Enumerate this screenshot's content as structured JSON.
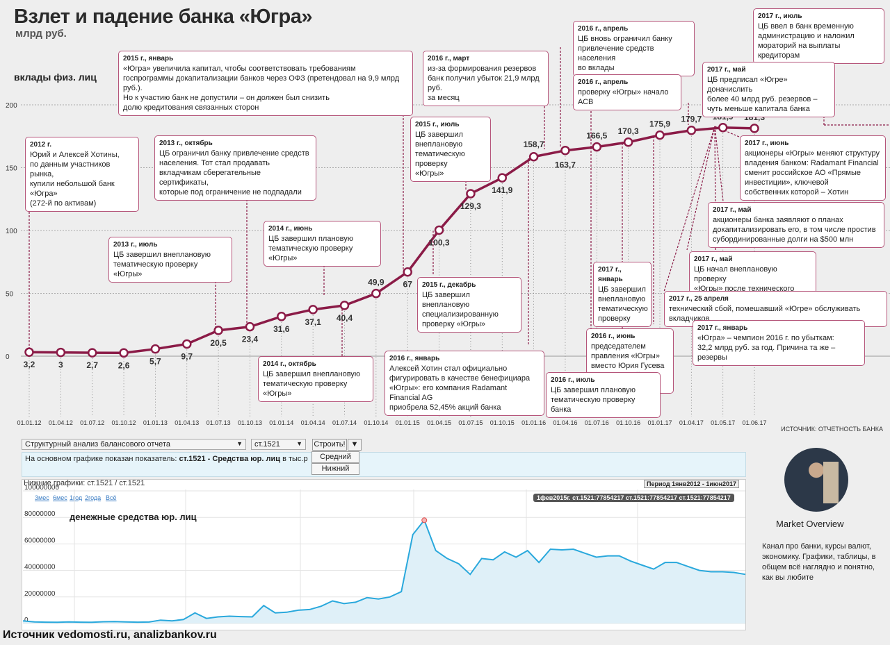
{
  "title": "Взлет и падение банка «Югра»",
  "subtitle": "млрд руб.",
  "series_label": "вклады физ. лиц",
  "source_top": "ИСТОЧНИК: ОТЧЕТНОСТЬ БАНКА",
  "chart_data": {
    "type": "line",
    "ylabel": "вклады физ. лиц",
    "ylim": [
      0,
      200
    ],
    "yticks": [
      "0",
      "50",
      "100",
      "150",
      "200"
    ],
    "x_tick_labels": [
      "01.01.12",
      "01.04.12",
      "01.07.12",
      "01.10.12",
      "01.01.13",
      "01.04.13",
      "01.07.13",
      "01.10.13",
      "01.01.14",
      "01.04.14",
      "01.07.14",
      "01.10.14",
      "01.01.15",
      "01.04.15",
      "01.07.15",
      "01.10.15",
      "01.01.16",
      "01.04.16",
      "01.07.16",
      "01.10.16",
      "01.01.17",
      "01.04.17",
      "01.05.17",
      "01.06.17"
    ],
    "series": [
      {
        "color": "#8b1b47",
        "points": [
          {
            "x": "01.01.12",
            "y": 3.2,
            "label": "3,2"
          },
          {
            "x": "01.04.12",
            "y": 3,
            "label": "3"
          },
          {
            "x": "01.07.12",
            "y": 2.7,
            "label": "2,7"
          },
          {
            "x": "01.10.12",
            "y": 2.6,
            "label": "2,6"
          },
          {
            "x": "01.01.13",
            "y": 5.7,
            "label": "5,7"
          },
          {
            "x": "01.04.13",
            "y": 9.7,
            "label": "9,7"
          },
          {
            "x": "01.07.13",
            "y": 20.5,
            "label": "20,5"
          },
          {
            "x": "01.10.13",
            "y": 23.4,
            "label": "23,4"
          },
          {
            "x": "01.01.14",
            "y": 31.6,
            "label": "31,6"
          },
          {
            "x": "01.04.14",
            "y": 37.1,
            "label": "37,1"
          },
          {
            "x": "01.07.14",
            "y": 40.4,
            "label": "40,4"
          },
          {
            "x": "01.10.14",
            "y": 49.9,
            "label": "49,9"
          },
          {
            "x": "01.01.15",
            "y": 67,
            "label": "67"
          },
          {
            "x": "01.04.15",
            "y": 100.3,
            "label": "100,3"
          },
          {
            "x": "01.07.15",
            "y": 129.3,
            "label": "129,3"
          },
          {
            "x": "01.10.15",
            "y": 141.9,
            "label": "141,9"
          },
          {
            "x": "01.01.16",
            "y": 158.7,
            "label": "158,7"
          },
          {
            "x": "01.04.16",
            "y": 163.7,
            "label": "163,7"
          },
          {
            "x": "01.07.16",
            "y": 166.5,
            "label": "166,5"
          },
          {
            "x": "01.10.16",
            "y": 170.3,
            "label": "170,3"
          },
          {
            "x": "01.01.17",
            "y": 175.9,
            "label": "175,9"
          },
          {
            "x": "01.04.17",
            "y": 179.7,
            "label": "179,7"
          },
          {
            "x": "01.05.17",
            "y": 181.9,
            "label": "181,9"
          },
          {
            "x": "01.06.17",
            "y": 181.3,
            "label": "181,3"
          }
        ]
      }
    ],
    "annotations": [
      {
        "date": "2012 г.",
        "text": "Юрий и Алексей Хотины,\nпо данным участников рынка,\nкупили небольшой банк «Югра»\n(272-й по активам)"
      },
      {
        "date": "2015 г., январь",
        "text": "«Югра» увеличила капитал, чтобы соответствовать требованиям\nгоспрограммы докапитализации банков через ОФЗ (претендовал на 9,9 млрд руб.).\nНо к участию банк не допустили – он должен был снизить\nдолю кредитования связанных сторон"
      },
      {
        "date": "2013 г., октябрь",
        "text": "ЦБ ограничил банку привлечение средств\nнаселения. Тот стал продавать\nвкладчикам сберегательные сертификаты,\nкоторые под ограничение не подпадали"
      },
      {
        "date": "2013 г., июль",
        "text": "ЦБ завершил внеплановую\nтематическую проверку «Югры»"
      },
      {
        "date": "2014 г., июнь",
        "text": "ЦБ завершил плановую\nтематическую проверку «Югры»"
      },
      {
        "date": "2014 г., октябрь",
        "text": "ЦБ завершил внеплановую\nтематическую проверку «Югры»"
      },
      {
        "date": "2016 г., март",
        "text": "из-за формирования резервов\nбанк получил убыток 21,9 млрд руб.\nза месяц"
      },
      {
        "date": "2015 г., июль",
        "text": "ЦБ завершил внеплановую\nтематическую проверку\n«Югры»"
      },
      {
        "date": "2015 г., декабрь",
        "text": "ЦБ завершил внеплановую\nспециализированную\nпроверку «Югры»"
      },
      {
        "date": "2016 г., январь",
        "text": "Алексей Хотин стал официально\nфигурировать в качестве бенефициара\n«Югры»: его компания Radamant Financial AG\nприобрела 52,45% акций банка"
      },
      {
        "date": "2016 г., апрель",
        "text": "ЦБ вновь ограничил банку\nпривлечение средств населения\nво вклады"
      },
      {
        "date": "2016 г., апрель",
        "text": "проверку «Югры» начало АСВ"
      },
      {
        "date": "2017 г., июль",
        "text": "ЦБ ввел в банк временную\nадминистрацию и наложил\nмораторий на выплаты кредиторам"
      },
      {
        "date": "2017 г., май",
        "text": "ЦБ предписал «Югре» доначислить\nболее 40 млрд руб. резервов –\nчуть меньше капитала банка"
      },
      {
        "date": "2017 г., июнь",
        "text": "акционеры «Югры» меняют структуру\nвладения банком: Radamant Financial\nсменит российское АО «Прямые\nинвестиции», ключевой\nсобственник которой – Хотин"
      },
      {
        "date": "2017 г., май",
        "text": "акционеры банка заявляют о планах\nдокапитализировать его, в том числе простив\nсубординированные долги на $500 млн"
      },
      {
        "date": "2017 г., май",
        "text": "ЦБ начал внеплановую проверку\n«Югры» после технического сбоя"
      },
      {
        "date": "2017 г., 25 апреля",
        "text": "технический сбой, помешавший «Югре» обслуживать вкладчиков"
      },
      {
        "date": "2017 г., январь",
        "text": "ЦБ завершил\nвнеплановую\nтематическую\nпроверку"
      },
      {
        "date": "2017 г., январь",
        "text": "«Югра» – чемпион 2016 г. по убыткам:\n32,2 млрд руб. за год. Причина та же – резервы"
      },
      {
        "date": "2016 г., июнь",
        "text": "председателем правления «Югры»\nвместо Юрия Гусева\nстал Дмитрий Шиляев"
      },
      {
        "date": "2016 г., июль",
        "text": "ЦБ завершил плановую\nтематическую проверку банка"
      }
    ]
  },
  "widget": {
    "select_analysis": "Структурный анализ балансового отчета",
    "select_code": "ст.1521",
    "build_button": "Строить!",
    "menu_items": [
      "Средний",
      "Нижний"
    ],
    "info_prefix": "На основном графике показан показатель: ",
    "info_value": "ст.1521 - Средства юр. лиц",
    "info_suffix": " в тыс.р",
    "lower_header": "Нижние графики: ст.1521 / ст.1521",
    "period": "Период 1янв2012 - 1июн2017",
    "zoom_links": [
      "3мес",
      "6мес",
      "1год",
      "2года",
      "Всё"
    ],
    "tooltip": "1фев2015г. ст.1521:77854217 ст.1521:77854217 ст.1521:77854217",
    "lower_label": "денежные средства юр. лиц",
    "lower_chart": {
      "type": "area",
      "color": "#29a8dc",
      "ylim": [
        0,
        100000000
      ],
      "yticks": [
        "0",
        "20000000",
        "40000000",
        "60000000",
        "80000000",
        "100000000"
      ],
      "values": [
        2000000,
        1200000,
        1000000,
        900000,
        1200000,
        1000000,
        900000,
        1300000,
        1400000,
        1200000,
        1000000,
        1100000,
        2500000,
        2000000,
        3000000,
        8000000,
        3800000,
        5000000,
        5500000,
        5200000,
        5000000,
        13500000,
        8000000,
        8500000,
        10000000,
        10500000,
        13000000,
        17000000,
        15000000,
        16000000,
        19500000,
        18500000,
        20000000,
        24000000,
        67000000,
        77854217,
        55000000,
        49000000,
        45000000,
        37000000,
        49000000,
        48000000,
        54000000,
        50000000,
        55000000,
        46000000,
        56000000,
        55500000,
        56000000,
        53000000,
        50000000,
        51000000,
        51000000,
        47000000,
        44000000,
        41000000,
        46000000,
        46000000,
        43000000,
        40000000,
        39000000,
        39000000,
        38500000,
        37000000
      ],
      "highlight_index": 35
    }
  },
  "footer": "Источник vedomosti.ru, analizbankov.ru",
  "market_overview": {
    "title": "Market Overview",
    "description": "Канал про банки, курсы валют, экономику. Графики, таблицы, в общем всё наглядно и понятно, как вы любите"
  }
}
